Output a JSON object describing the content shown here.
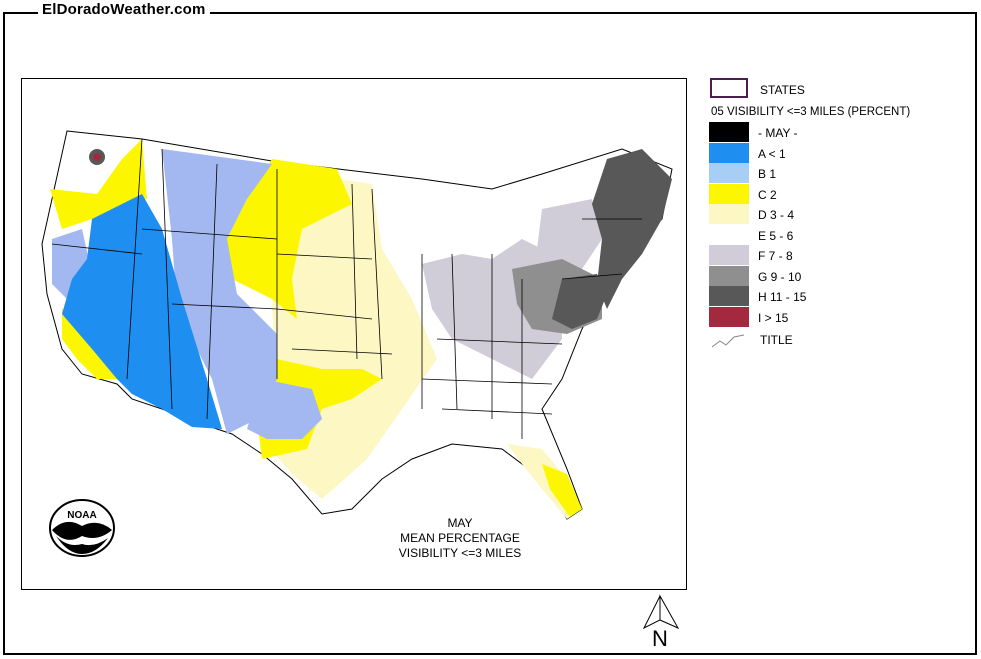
{
  "site": {
    "title": "ElDoradoWeather.com"
  },
  "map": {
    "caption": [
      "MAY",
      "MEAN PERCENTAGE",
      "VISIBILITY <=3 MILES"
    ],
    "logo_text": "NOAA",
    "north_label": "N"
  },
  "legend": {
    "states_label": "STATES",
    "header": "05 VISIBILITY <=3 MILES (PERCENT)",
    "title_label": "TITLE",
    "items": [
      {
        "label": "- MAY -",
        "color": "#000000"
      },
      {
        "label": "A < 1",
        "color": "#1e8ef0"
      },
      {
        "label": "B 1",
        "color": "#a7cef5"
      },
      {
        "label": "C 2",
        "color": "#fcf700"
      },
      {
        "label": "D 3 - 4",
        "color": "#fdf7c4"
      },
      {
        "label": "E 5 - 6",
        "color": "#ffffff"
      },
      {
        "label": "F 7 - 8",
        "color": "#d0ccd8"
      },
      {
        "label": "G 9 - 10",
        "color": "#8f8f8f"
      },
      {
        "label": "H 11 - 15",
        "color": "#585858"
      },
      {
        "label": "I > 15",
        "color": "#a5293e"
      }
    ]
  },
  "colors": {
    "states_border": "#4a1f4e",
    "blue": "#1e8ef0",
    "light_blue": "#a7cef5",
    "periwinkle": "#a3b8f0",
    "yellow": "#fcf700",
    "cream": "#fdf7c4",
    "lavender": "#d0ccd8",
    "gray": "#8f8f8f",
    "dark_gray": "#585858",
    "red": "#a5293e"
  }
}
